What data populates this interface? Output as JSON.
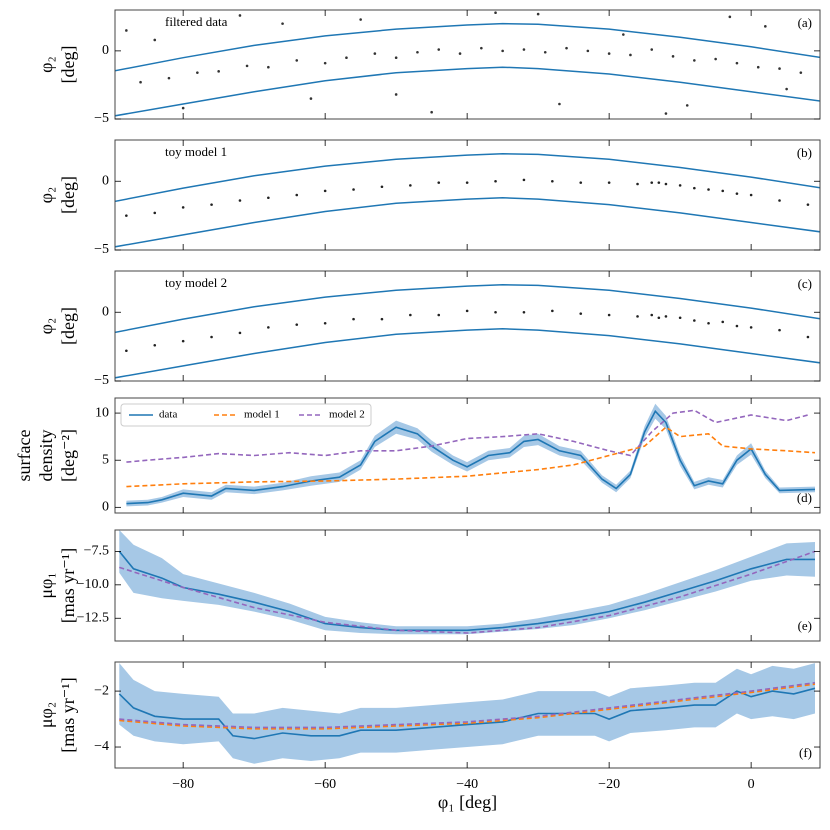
{
  "chart_data": [
    {
      "type": "scatter",
      "title": "filtered data",
      "panel_label": "(a)",
      "ylabel": [
        "φ₂",
        "[deg]"
      ],
      "ylim": [
        -5,
        3
      ],
      "yticks": [
        {
          "value": -5,
          "label": "−5"
        },
        0
      ],
      "points": {
        "color": "#333333",
        "x": [
          -86,
          -82,
          -78,
          -75,
          -71,
          -68,
          -64,
          -60,
          -57,
          -53,
          -50,
          -47,
          -44,
          -41,
          -38,
          -35,
          -32,
          -29,
          -26,
          -23,
          -20,
          -17,
          -14,
          -11,
          -8,
          -5,
          -2,
          1,
          4,
          7,
          -88,
          -80,
          -72,
          -62,
          -55,
          -45,
          -36,
          -27,
          -18,
          -9,
          -3,
          5,
          -84,
          -66,
          -50,
          -30,
          -12,
          2
        ],
        "y": [
          -2.3,
          -2.0,
          -1.6,
          -1.5,
          -1.1,
          -1.2,
          -0.7,
          -0.9,
          -0.5,
          -0.2,
          -0.5,
          -0.1,
          0.1,
          -0.2,
          0.2,
          0,
          0.1,
          -0.1,
          0.2,
          0,
          -0.2,
          -0.3,
          0.1,
          -0.4,
          -0.7,
          -0.6,
          -0.9,
          -1.2,
          -1.3,
          -1.6,
          1.5,
          -4.2,
          2.6,
          -3.5,
          2.3,
          -4.5,
          2.8,
          -3.9,
          1.2,
          -4.0,
          2.5,
          -2.8,
          0.8,
          2.0,
          -3.2,
          2.7,
          -4.6,
          1.8
        ]
      },
      "curves": [
        {
          "color": "#1f77b4",
          "x": [
            -90,
            -80,
            -70,
            -60,
            -50,
            -40,
            -35,
            -30,
            -20,
            -10,
            0,
            10
          ],
          "values": [
            -1.5,
            -0.5,
            0.4,
            1.1,
            1.6,
            1.9,
            2.0,
            1.95,
            1.6,
            1.0,
            0.3,
            -0.5
          ]
        },
        {
          "color": "#1f77b4",
          "x": [
            -90,
            -80,
            -70,
            -60,
            -50,
            -40,
            -35,
            -30,
            -20,
            -10,
            0,
            10
          ],
          "values": [
            -4.8,
            -3.9,
            -3.0,
            -2.2,
            -1.6,
            -1.3,
            -1.2,
            -1.3,
            -1.7,
            -2.3,
            -3.0,
            -3.7
          ]
        }
      ]
    },
    {
      "type": "scatter",
      "title": "toy model 1",
      "panel_label": "(b)",
      "ylabel": [
        "φ₂",
        "[deg]"
      ],
      "ylim": [
        -5,
        3
      ],
      "yticks": [
        {
          "value": -5,
          "label": "−5"
        },
        0
      ],
      "points": {
        "color": "#222222",
        "x": [
          -88,
          -84,
          -80,
          -76,
          -72,
          -68,
          -64,
          -60,
          -56,
          -52,
          -48,
          -44,
          -40,
          -36,
          -32,
          -28,
          -24,
          -20,
          -16,
          -14,
          -13,
          -12,
          -10,
          -8,
          -6,
          -4,
          -2,
          0,
          4,
          8
        ],
        "y": [
          -2.5,
          -2.3,
          -1.9,
          -1.7,
          -1.4,
          -1.2,
          -1.0,
          -0.7,
          -0.6,
          -0.4,
          -0.3,
          -0.1,
          -0.1,
          0,
          0.1,
          0,
          -0.1,
          -0.1,
          -0.2,
          -0.1,
          -0.1,
          -0.2,
          -0.3,
          -0.5,
          -0.6,
          -0.7,
          -0.9,
          -1.0,
          -1.4,
          -1.7
        ]
      },
      "curves": [
        {
          "color": "#1f77b4",
          "x": [
            -90,
            -80,
            -70,
            -60,
            -50,
            -40,
            -35,
            -30,
            -20,
            -10,
            0,
            10
          ],
          "values": [
            -1.5,
            -0.5,
            0.4,
            1.1,
            1.6,
            1.9,
            2.0,
            1.95,
            1.6,
            1.0,
            0.3,
            -0.5
          ]
        },
        {
          "color": "#1f77b4",
          "x": [
            -90,
            -80,
            -70,
            -60,
            -50,
            -40,
            -35,
            -30,
            -20,
            -10,
            0,
            10
          ],
          "values": [
            -4.8,
            -3.9,
            -3.0,
            -2.2,
            -1.6,
            -1.3,
            -1.2,
            -1.3,
            -1.7,
            -2.3,
            -3.0,
            -3.7
          ]
        }
      ]
    },
    {
      "type": "scatter",
      "title": "toy model 2",
      "panel_label": "(c)",
      "ylabel": [
        "φ₂",
        "[deg]"
      ],
      "ylim": [
        -5,
        3
      ],
      "yticks": [
        {
          "value": -5,
          "label": "−5"
        },
        0
      ],
      "points": {
        "color": "#222222",
        "x": [
          -88,
          -84,
          -80,
          -76,
          -72,
          -68,
          -64,
          -60,
          -56,
          -52,
          -48,
          -44,
          -40,
          -36,
          -32,
          -28,
          -24,
          -20,
          -16,
          -14,
          -13,
          -12,
          -10,
          -8,
          -6,
          -4,
          -2,
          0,
          4,
          8
        ],
        "y": [
          -2.8,
          -2.4,
          -2.1,
          -1.8,
          -1.5,
          -1.1,
          -0.9,
          -0.8,
          -0.5,
          -0.5,
          -0.2,
          -0.2,
          0.1,
          0,
          0,
          0.1,
          -0.1,
          -0.2,
          -0.3,
          -0.2,
          -0.4,
          -0.3,
          -0.4,
          -0.6,
          -0.8,
          -0.7,
          -1.0,
          -1.1,
          -1.3,
          -1.8
        ]
      },
      "curves": [
        {
          "color": "#1f77b4",
          "x": [
            -90,
            -80,
            -70,
            -60,
            -50,
            -40,
            -35,
            -30,
            -20,
            -10,
            0,
            10
          ],
          "values": [
            -1.5,
            -0.5,
            0.4,
            1.1,
            1.6,
            1.9,
            2.0,
            1.95,
            1.6,
            1.0,
            0.3,
            -0.5
          ]
        },
        {
          "color": "#1f77b4",
          "x": [
            -90,
            -80,
            -70,
            -60,
            -50,
            -40,
            -35,
            -30,
            -20,
            -10,
            0,
            10
          ],
          "values": [
            -4.8,
            -3.9,
            -3.0,
            -2.2,
            -1.6,
            -1.3,
            -1.2,
            -1.3,
            -1.7,
            -2.3,
            -3.0,
            -3.7
          ]
        }
      ]
    },
    {
      "type": "line",
      "panel_label": "(d)",
      "ylabel": [
        "surface",
        "density",
        "[deg⁻²]"
      ],
      "ylim": [
        -0.6,
        11.6
      ],
      "yticks": [
        0,
        5,
        10
      ],
      "legend": "upper left",
      "series": [
        {
          "name": "data",
          "color": "#1f77b4",
          "linestyle": "solid",
          "band_color": "#a6c8e6",
          "x": [
            -88,
            -85,
            -83,
            -80,
            -76,
            -74,
            -70,
            -66,
            -62,
            -58,
            -55,
            -53,
            -50,
            -47,
            -45,
            -42,
            -40,
            -37,
            -34,
            -32,
            -30,
            -27,
            -24,
            -21,
            -19,
            -17,
            -15,
            -13.5,
            -12,
            -10,
            -8,
            -6,
            -4,
            -2,
            0,
            2,
            4,
            9
          ],
          "values": [
            0.4,
            0.5,
            0.8,
            1.5,
            1.2,
            2.0,
            1.8,
            2.2,
            2.8,
            3.2,
            4.5,
            7.0,
            8.5,
            7.8,
            6.5,
            5.0,
            4.3,
            5.5,
            5.8,
            7.0,
            7.2,
            6.0,
            5.5,
            3.0,
            2.0,
            3.5,
            8.0,
            10.2,
            9.0,
            5.0,
            2.3,
            2.8,
            2.5,
            5.0,
            6.2,
            3.5,
            1.8,
            1.9
          ],
          "errors": [
            0.3,
            0.3,
            0.3,
            0.4,
            0.4,
            0.4,
            0.4,
            0.4,
            0.5,
            0.5,
            0.5,
            0.6,
            0.7,
            0.6,
            0.6,
            0.5,
            0.5,
            0.5,
            0.5,
            0.6,
            0.6,
            0.5,
            0.5,
            0.4,
            0.4,
            0.4,
            0.6,
            0.8,
            0.7,
            0.6,
            0.4,
            0.4,
            0.4,
            0.5,
            0.6,
            0.4,
            0.3,
            0.3
          ]
        },
        {
          "name": "model 1",
          "color": "#ff7f0e",
          "linestyle": "dashed",
          "x": [
            -88,
            -80,
            -70,
            -60,
            -50,
            -40,
            -30,
            -25,
            -20,
            -15,
            -12,
            -10,
            -6,
            -4,
            0,
            5,
            9
          ],
          "values": [
            2.2,
            2.5,
            2.7,
            2.8,
            3.0,
            3.3,
            4.0,
            4.5,
            5.5,
            6.5,
            8.5,
            7.5,
            7.8,
            6.5,
            6.2,
            6.0,
            5.8
          ]
        },
        {
          "name": "model 2",
          "color": "#9467bd",
          "linestyle": "dashed",
          "x": [
            -88,
            -85,
            -80,
            -75,
            -70,
            -65,
            -60,
            -55,
            -50,
            -45,
            -40,
            -35,
            -30,
            -25,
            -20,
            -17,
            -14,
            -11,
            -8,
            -5,
            0,
            5,
            8
          ],
          "values": [
            4.8,
            5.0,
            5.3,
            5.7,
            5.5,
            5.8,
            5.5,
            6.0,
            6.0,
            6.5,
            7.3,
            7.5,
            7.8,
            7.0,
            6.0,
            5.5,
            8.0,
            10.0,
            10.3,
            9.0,
            9.8,
            9.2,
            9.8
          ]
        }
      ]
    },
    {
      "type": "line",
      "panel_label": "(e)",
      "ylabel": [
        "μφ₁",
        "[mas yr⁻¹]"
      ],
      "ylim": [
        -14.2,
        -5.9
      ],
      "yticks": [
        {
          "value": -12.5,
          "label": "−12.5"
        },
        {
          "value": -10,
          "label": "−10.0"
        },
        {
          "value": -7.5,
          "label": "−7.5"
        }
      ],
      "series": [
        {
          "color": "#1f77b4",
          "linestyle": "solid",
          "band_color": "#a6c8e6",
          "x": [
            -89,
            -87,
            -83,
            -80,
            -75,
            -70,
            -65,
            -60,
            -55,
            -50,
            -45,
            -40,
            -35,
            -30,
            -25,
            -20,
            -15,
            -10,
            -5,
            0,
            5,
            9
          ],
          "values": [
            -7.5,
            -8.8,
            -9.5,
            -10.2,
            -10.7,
            -11.3,
            -12.0,
            -12.9,
            -13.2,
            -13.4,
            -13.4,
            -13.4,
            -13.2,
            -12.9,
            -12.5,
            -12.0,
            -11.3,
            -10.5,
            -9.7,
            -8.8,
            -8.1,
            -8.1
          ],
          "errors": [
            1.6,
            1.8,
            1.5,
            1.0,
            0.8,
            0.7,
            0.6,
            0.5,
            0.4,
            0.3,
            0.3,
            0.3,
            0.3,
            0.4,
            0.5,
            0.5,
            0.6,
            0.7,
            0.8,
            0.9,
            1.2,
            1.3
          ]
        },
        {
          "color": "#9467bd",
          "linestyle": "dashed",
          "x": [
            -89,
            -80,
            -70,
            -60,
            -50,
            -40,
            -30,
            -20,
            -10,
            0,
            9
          ],
          "values": [
            -8.7,
            -10.2,
            -11.7,
            -12.8,
            -13.4,
            -13.6,
            -13.2,
            -12.3,
            -10.9,
            -9.2,
            -7.5
          ]
        }
      ]
    },
    {
      "type": "line",
      "panel_label": "(f)",
      "ylabel": [
        "μφ₂",
        "[mas yr⁻¹]"
      ],
      "ylim": [
        -4.75,
        -0.96
      ],
      "yticks": [
        {
          "value": -4,
          "label": "−4"
        },
        {
          "value": -2,
          "label": "−2"
        }
      ],
      "xlabel": "φ₁ [deg]",
      "xlim": [
        -89.6,
        9.7
      ],
      "xticks": [
        {
          "value": -80,
          "label": "−80"
        },
        {
          "value": -60,
          "label": "−60"
        },
        {
          "value": -40,
          "label": "−40"
        },
        {
          "value": -20,
          "label": "−20"
        },
        0
      ],
      "series": [
        {
          "color": "#1f77b4",
          "linestyle": "solid",
          "band_color": "#a6c8e6",
          "x": [
            -89,
            -87,
            -84,
            -80,
            -75,
            -73,
            -70,
            -66,
            -62,
            -58,
            -55,
            -50,
            -45,
            -40,
            -35,
            -30,
            -25,
            -22,
            -20,
            -17,
            -12,
            -8,
            -5,
            -2,
            0,
            3,
            6,
            9
          ],
          "values": [
            -2.1,
            -2.6,
            -2.9,
            -3.0,
            -3.0,
            -3.6,
            -3.7,
            -3.5,
            -3.6,
            -3.6,
            -3.4,
            -3.4,
            -3.3,
            -3.2,
            -3.1,
            -2.8,
            -2.8,
            -2.8,
            -3.0,
            -2.7,
            -2.6,
            -2.5,
            -2.5,
            -2.0,
            -2.2,
            -2.0,
            -2.1,
            -1.9
          ],
          "errors": [
            1.1,
            1.0,
            0.9,
            0.9,
            0.8,
            0.8,
            0.9,
            0.9,
            0.9,
            0.8,
            0.8,
            0.8,
            0.8,
            0.8,
            0.8,
            0.8,
            0.8,
            0.8,
            0.8,
            0.8,
            0.8,
            0.8,
            0.8,
            0.8,
            0.8,
            0.9,
            0.9,
            0.9
          ]
        },
        {
          "color": "#ff7f0e",
          "linestyle": "dashed",
          "x": [
            -89,
            -80,
            -70,
            -60,
            -50,
            -40,
            -30,
            -20,
            -10,
            0,
            9
          ],
          "values": [
            -3.05,
            -3.25,
            -3.35,
            -3.35,
            -3.25,
            -3.15,
            -2.95,
            -2.65,
            -2.35,
            -2.05,
            -1.75
          ]
        },
        {
          "color": "#9467bd",
          "linestyle": "dashed",
          "x": [
            -89,
            -80,
            -70,
            -60,
            -50,
            -40,
            -30,
            -20,
            -10,
            0,
            9
          ],
          "values": [
            -3.0,
            -3.2,
            -3.3,
            -3.3,
            -3.2,
            -3.1,
            -2.9,
            -2.6,
            -2.3,
            -2.0,
            -1.7
          ]
        }
      ]
    }
  ]
}
